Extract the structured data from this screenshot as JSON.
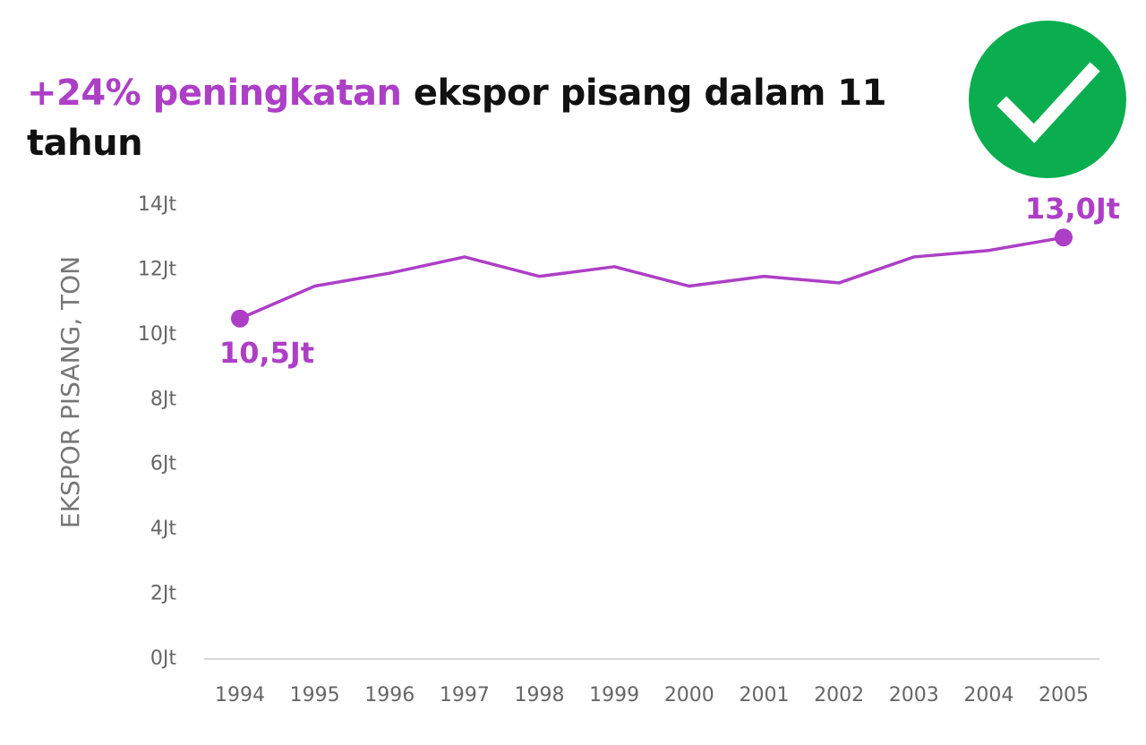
{
  "chart_data": {
    "type": "line",
    "title_highlight": "+24% peningkatan",
    "title": "ekspor pisang dalam 11 tahun",
    "y_label": "EKSPOR PISANG, TON",
    "categories": [
      "1994",
      "1995",
      "1996",
      "1997",
      "1998",
      "1999",
      "2000",
      "2001",
      "2002",
      "2003",
      "2004",
      "2005"
    ],
    "series": [
      {
        "color": "#ad3fc6",
        "values": [
          10.5,
          11.5,
          11.9,
          12.4,
          11.8,
          12.1,
          11.5,
          11.8,
          11.6,
          12.4,
          12.6,
          13.0
        ],
        "value_labels": [
          "10,5Jt",
          null,
          null,
          null,
          null,
          null,
          null,
          null,
          null,
          null,
          null,
          "13,0Jt"
        ]
      }
    ],
    "ylim": [
      0,
      14
    ],
    "yticks": [
      {
        "value": 0,
        "label": "0Jt"
      },
      {
        "value": 2,
        "label": "2Jt"
      },
      {
        "value": 4,
        "label": "4Jt"
      },
      {
        "value": 6,
        "label": "6Jt"
      },
      {
        "value": 8,
        "label": "8Jt"
      },
      {
        "value": 10,
        "label": "10Jt"
      },
      {
        "value": 12,
        "label": "12Jt"
      },
      {
        "value": 14,
        "label": "14Jt"
      }
    ],
    "grid": false
  }
}
